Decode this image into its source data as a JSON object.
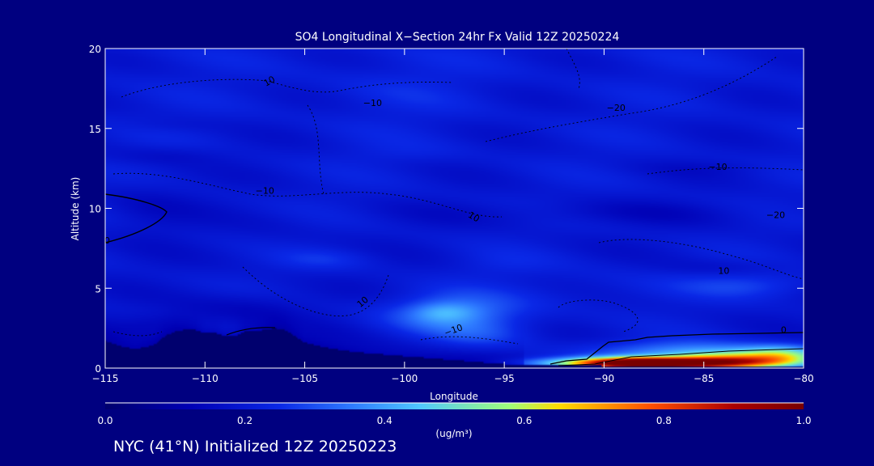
{
  "colors": {
    "background": "#000080",
    "text": "#ffffff",
    "colormap": [
      "#00006e",
      "#0000b4",
      "#0a28e6",
      "#2d78ff",
      "#50c8ff",
      "#a0ff78",
      "#ffdc00",
      "#ff5000",
      "#aa0000",
      "#780000"
    ]
  },
  "chart_data": {
    "type": "heatmap",
    "title": "SO4 Longitudinal X−Section 24hr  Fx Valid 12Z 20250224",
    "xlabel": "Longitude",
    "ylabel": "Altitude (km)",
    "xlim": [
      -115,
      -80
    ],
    "ylim": [
      0,
      20
    ],
    "x_ticks": [
      -115,
      -110,
      -105,
      -100,
      -95,
      -90,
      -85,
      -80
    ],
    "x_tick_labels": [
      "−115",
      "−110",
      "−105",
      "−100",
      "−95",
      "−90",
      "−85",
      "−80"
    ],
    "y_ticks": [
      0,
      5,
      10,
      15,
      20
    ],
    "y_tick_labels": [
      "0",
      "5",
      "10",
      "15",
      "20"
    ],
    "colorbar": {
      "min": 0.0,
      "max": 1.0,
      "ticks": [
        0.0,
        0.2,
        0.4,
        0.6,
        0.8,
        1.0
      ],
      "tick_labels": [
        "0.0",
        "0.2",
        "0.4",
        "0.6",
        "0.8",
        "1.0"
      ],
      "label": "(ug/m³)"
    },
    "terrain": {
      "lon": [
        -115,
        -114.5,
        -114,
        -113.5,
        -113,
        -112.5,
        -112,
        -111.5,
        -111,
        -110.5,
        -110,
        -109.5,
        -109,
        -108.5,
        -108,
        -107.5,
        -107,
        -106.5,
        -106,
        -105.5,
        -105,
        -104,
        -103,
        -102,
        -101,
        -100,
        -99,
        -98,
        -97,
        -96,
        -95,
        -93,
        -90,
        -85,
        -80
      ],
      "alt_km": [
        1.7,
        1.5,
        1.3,
        1.2,
        1.3,
        1.5,
        2.0,
        2.3,
        2.4,
        2.4,
        2.2,
        2.2,
        2.0,
        2.0,
        2.3,
        2.3,
        2.4,
        2.5,
        2.4,
        2.0,
        1.6,
        1.3,
        1.1,
        0.95,
        0.85,
        0.75,
        0.65,
        0.55,
        0.45,
        0.35,
        0.25,
        0.2,
        0.15,
        0.1,
        0.1
      ]
    },
    "concentration_blobs": [
      {
        "lon": -87.5,
        "alt_km": 0.3,
        "sx": 5.0,
        "sy": 0.35,
        "value": 0.78
      },
      {
        "lon": -88.5,
        "alt_km": 0.4,
        "sx": 2.2,
        "sy": 0.3,
        "value": 0.22
      },
      {
        "lon": -83.5,
        "alt_km": 0.5,
        "sx": 3.0,
        "sy": 0.5,
        "value": 0.35
      },
      {
        "lon": -81.0,
        "alt_km": 0.8,
        "sx": 2.0,
        "sy": 0.6,
        "value": 0.25
      },
      {
        "lon": -85.5,
        "alt_km": 1.0,
        "sx": 5.0,
        "sy": 0.7,
        "value": 0.18
      },
      {
        "lon": -97.5,
        "alt_km": 3.4,
        "sx": 3.5,
        "sy": 1.3,
        "value": 0.16
      },
      {
        "lon": -98.0,
        "alt_km": 3.5,
        "sx": 1.5,
        "sy": 0.6,
        "value": 0.08
      },
      {
        "lon": -96.0,
        "alt_km": 2.0,
        "sx": 2.5,
        "sy": 0.9,
        "value": 0.06
      },
      {
        "lon": -82.5,
        "alt_km": 5.2,
        "sx": 3.5,
        "sy": 0.8,
        "value": 0.08
      },
      {
        "lon": -104.0,
        "alt_km": 6.8,
        "sx": 2.5,
        "sy": 0.7,
        "value": 0.05
      },
      {
        "lon": -95.0,
        "alt_km": 6.5,
        "sx": 2.5,
        "sy": 0.8,
        "value": 0.03
      },
      {
        "lon": -90.0,
        "alt_km": 5.0,
        "sx": 4.0,
        "sy": 1.5,
        "value": 0.03
      },
      {
        "lon": -100.5,
        "alt_km": 17.5,
        "sx": 4.0,
        "sy": 2.0,
        "value": 0.025
      },
      {
        "lon": -100.0,
        "alt_km": 13.5,
        "sx": 3.0,
        "sy": 0.7,
        "value": 0.02
      },
      {
        "lon": -108.0,
        "alt_km": 3.8,
        "sx": 3.0,
        "sy": 1.0,
        "value": -0.05
      },
      {
        "lon": -112.0,
        "alt_km": 2.8,
        "sx": 2.0,
        "sy": 0.7,
        "value": -0.045
      },
      {
        "lon": -90.0,
        "alt_km": 9.7,
        "sx": 9.0,
        "sy": 0.8,
        "value": -0.04
      },
      {
        "lon": -113.0,
        "alt_km": 10.0,
        "sx": 2.5,
        "sy": 1.8,
        "value": -0.04
      },
      {
        "lon": -112.0,
        "alt_km": 13.3,
        "sx": 3.0,
        "sy": 0.6,
        "value": -0.035
      },
      {
        "lon": -112.0,
        "alt_km": 15.2,
        "sx": 2.5,
        "sy": 0.5,
        "value": -0.02
      },
      {
        "lon": -85.0,
        "alt_km": 12.5,
        "sx": 4.0,
        "sy": 0.5,
        "value": -0.02
      },
      {
        "lon": -84.0,
        "alt_km": 6.3,
        "sx": 3.0,
        "sy": 0.5,
        "value": -0.03
      },
      {
        "lon": -106.5,
        "alt_km": 8.5,
        "sx": 2.5,
        "sy": 1.5,
        "value": -0.015
      }
    ],
    "contour_labels": [
      {
        "text": "10",
        "lon": -106.7,
        "alt_km": 17.8,
        "angle": 30
      },
      {
        "text": "−10",
        "lon": -101.6,
        "alt_km": 16.4,
        "angle": 0
      },
      {
        "text": "−20",
        "lon": -89.4,
        "alt_km": 16.1,
        "angle": 0
      },
      {
        "text": "−10",
        "lon": -84.3,
        "alt_km": 12.4,
        "angle": 0
      },
      {
        "text": "−10",
        "lon": -107.0,
        "alt_km": 10.9,
        "angle": 0
      },
      {
        "text": "10",
        "lon": -96.6,
        "alt_km": 9.3,
        "angle": -30
      },
      {
        "text": "−20",
        "lon": -81.4,
        "alt_km": 9.4,
        "angle": 0
      },
      {
        "text": "10",
        "lon": -84.0,
        "alt_km": 5.9,
        "angle": 0
      },
      {
        "text": "10",
        "lon": -102.0,
        "alt_km": 4.0,
        "angle": 40
      },
      {
        "text": "−10",
        "lon": -97.5,
        "alt_km": 2.2,
        "angle": 20
      },
      {
        "text": "0",
        "lon": -81.0,
        "alt_km": 2.2,
        "angle": 0
      },
      {
        "text": "0",
        "lon": -114.9,
        "alt_km": 7.8,
        "angle": 0
      }
    ]
  },
  "footer": "NYC (41°N) Initialized 12Z 20250223"
}
